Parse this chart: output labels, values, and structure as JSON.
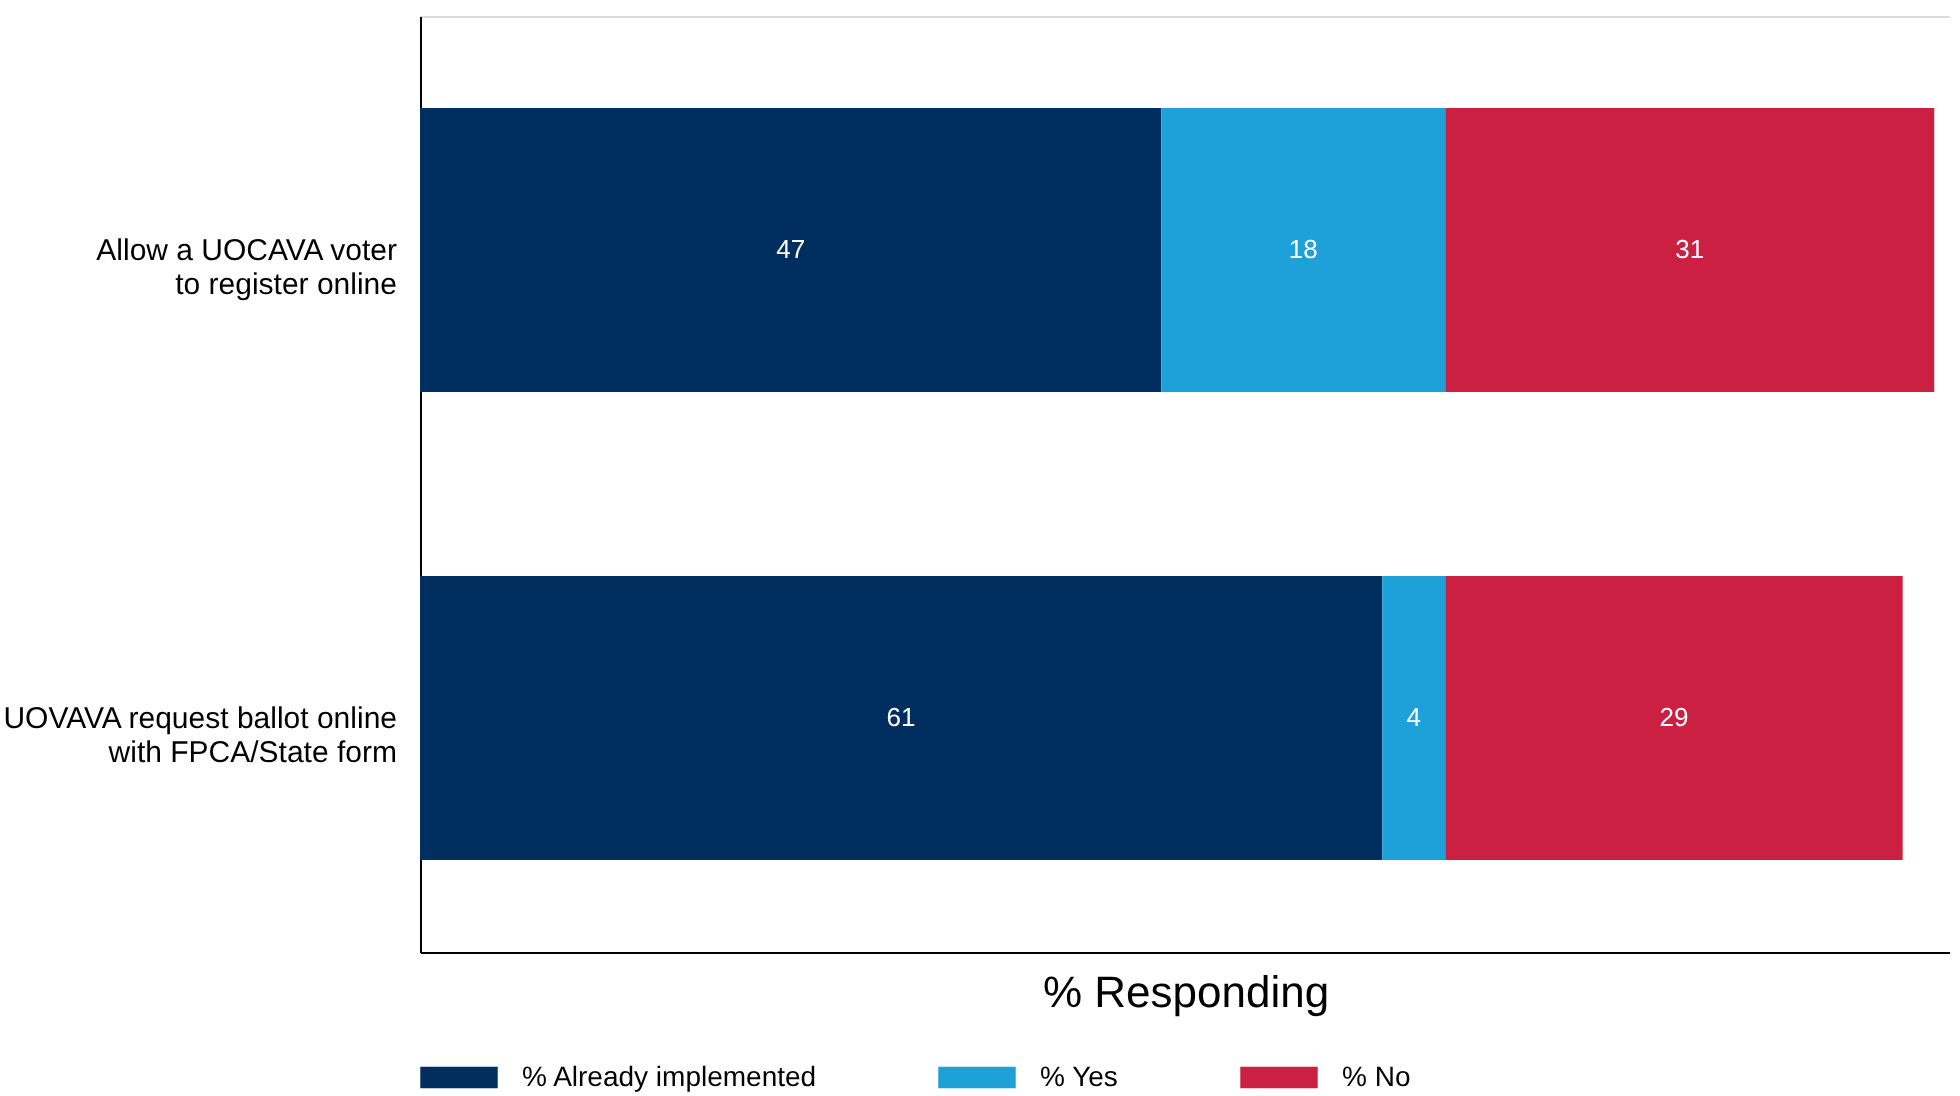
{
  "chart_data": {
    "type": "bar",
    "orientation": "horizontal",
    "stacked": true,
    "data_labels": true,
    "xlabel": "% Responding",
    "xlim": [
      0,
      97
    ],
    "tick_labels": "y",
    "legend": "bottom",
    "categories": [
      "Allow a UOCAVA voter to register online",
      "UOVAVA request ballot online with FPCA/State form"
    ],
    "series": [
      {
        "name": "% Already implemented",
        "color": "#002f5f",
        "values": [
          47,
          61
        ]
      },
      {
        "name": "% Yes",
        "color": "#1ea1d9",
        "values": [
          18,
          4
        ]
      },
      {
        "name": "% No",
        "color": "#cc2042",
        "values": [
          31,
          29
        ]
      }
    ]
  }
}
